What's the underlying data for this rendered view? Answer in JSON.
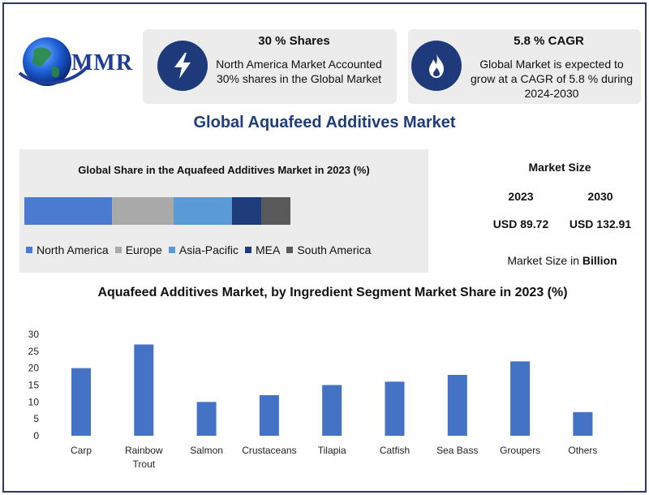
{
  "logo": {
    "text": "MMR"
  },
  "stat_left": {
    "title": "30 % Shares",
    "text": "North America Market Accounted 30% shares in the Global Market",
    "icon": "lightning-icon"
  },
  "stat_right": {
    "title": "5.8 % CAGR",
    "text": "Global Market is expected to grow at a CAGR of 5.8 % during 2024-2030",
    "icon": "flame-icon"
  },
  "main_title": "Global Aquafeed Additives Market",
  "market_size": {
    "heading": "Market Size",
    "year1": "2023",
    "year2": "2030",
    "value1": "USD 89.72",
    "value2": "USD 132.91",
    "note_prefix": "Market Size in",
    "note_unit": "Billion"
  },
  "colors": {
    "north_america": "#4a7bd0",
    "europe": "#a9a9a9",
    "asia_pacific": "#5b9bd5",
    "mea": "#1f3d7a",
    "south_america": "#5a5a5a",
    "bar": "#4472c4",
    "navy": "#1e3a7a"
  },
  "chart_data": [
    {
      "type": "bar",
      "orientation": "horizontal-stacked",
      "title": "Global Share in the Aquafeed Additives Market in 2023 (%)",
      "series": [
        {
          "name": "North America",
          "values": [
            30
          ],
          "color": "#4a7bd0"
        },
        {
          "name": "Europe",
          "values": [
            21
          ],
          "color": "#a9a9a9"
        },
        {
          "name": "Asia-Pacific",
          "values": [
            20
          ],
          "color": "#5b9bd5"
        },
        {
          "name": "MEA",
          "values": [
            10
          ],
          "color": "#1f3d7a"
        },
        {
          "name": "South America",
          "values": [
            10
          ],
          "color": "#5a5a5a"
        }
      ],
      "legend_position": "bottom"
    },
    {
      "type": "bar",
      "title": "Aquafeed Additives Market, by Ingredient Segment Market Share in 2023 (%)",
      "categories": [
        "Carp",
        "Rainbow Trout",
        "Salmon",
        "Crustaceans",
        "Tilapia",
        "Catfish",
        "Sea Bass",
        "Groupers",
        "Others"
      ],
      "category_lines": [
        [
          "Carp"
        ],
        [
          "Rainbow",
          "Trout"
        ],
        [
          "Salmon"
        ],
        [
          "Crustaceans"
        ],
        [
          "Tilapia"
        ],
        [
          "Catfish"
        ],
        [
          "Sea Bass"
        ],
        [
          "Groupers"
        ],
        [
          "Others"
        ]
      ],
      "values": [
        20,
        27,
        10,
        12,
        15,
        16,
        18,
        22,
        7
      ],
      "yticks": [
        0,
        5,
        10,
        15,
        20,
        25,
        30
      ],
      "ylim": [
        0,
        30
      ],
      "grid": false,
      "color": "#4472c4"
    }
  ]
}
